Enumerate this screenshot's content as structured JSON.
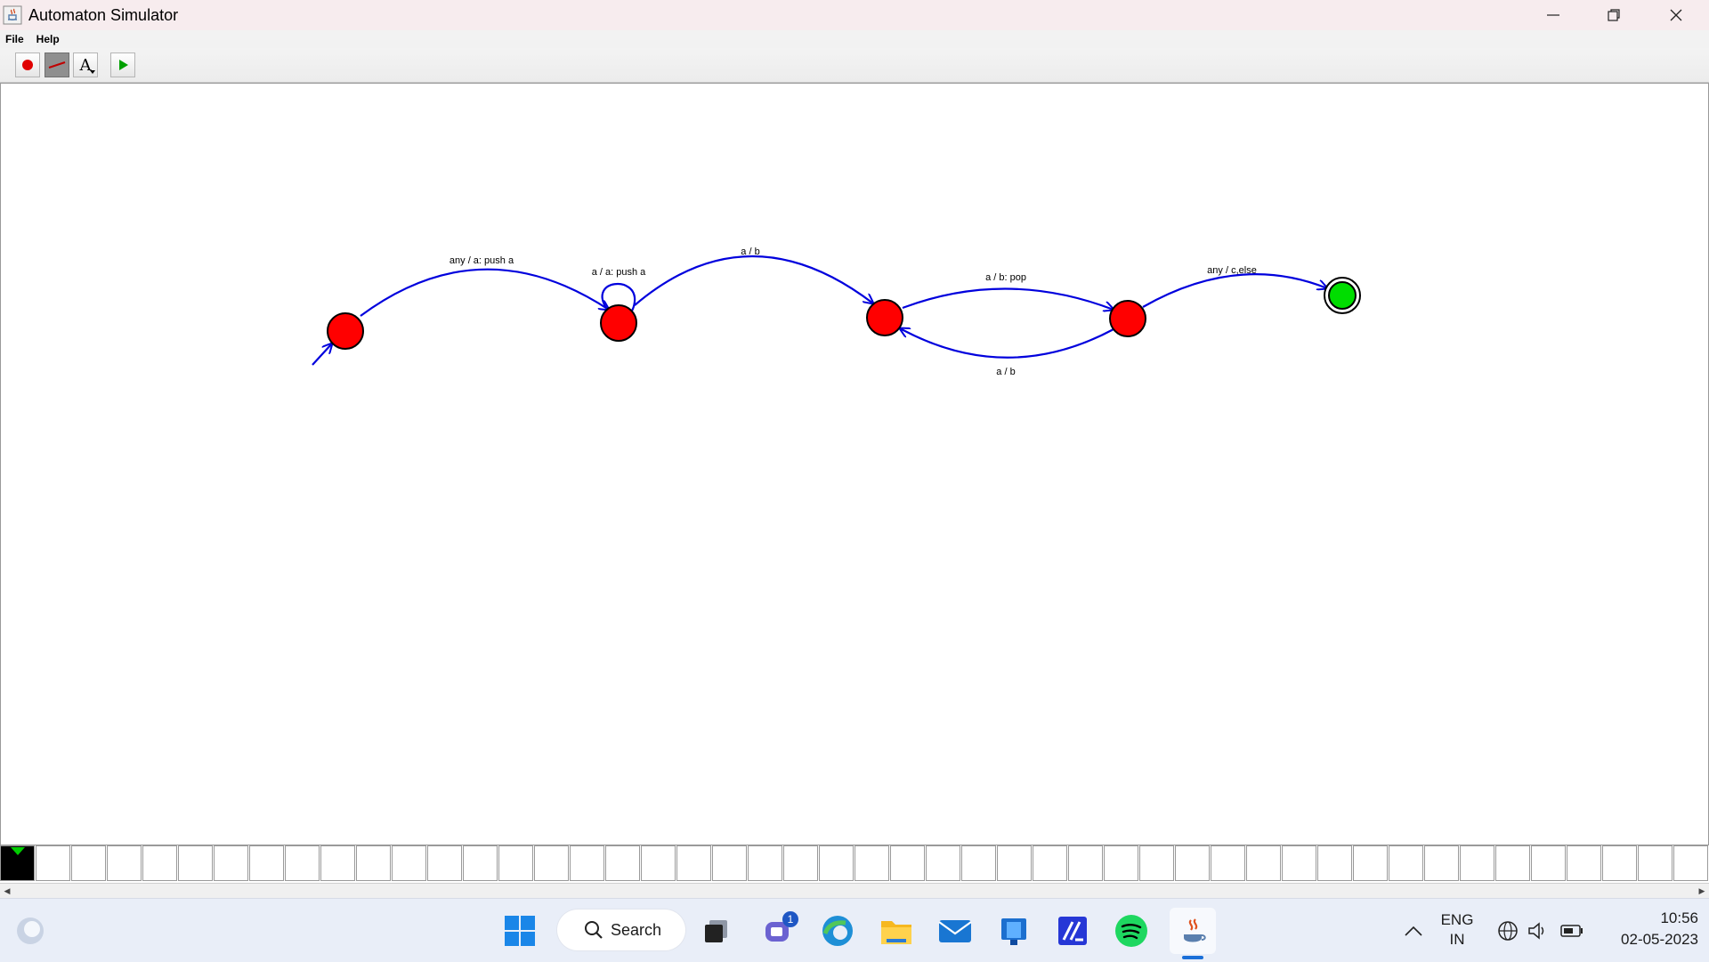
{
  "window": {
    "title": "Automaton Simulator"
  },
  "menu": {
    "items": [
      "File",
      "Help"
    ]
  },
  "toolbar": {
    "buttons": [
      {
        "name": "add-state-tool",
        "selected": false
      },
      {
        "name": "add-transition-tool",
        "selected": true
      },
      {
        "name": "add-text-tool",
        "selected": false,
        "label": "A"
      },
      {
        "name": "run-button",
        "selected": false
      }
    ]
  },
  "automaton": {
    "states": [
      {
        "id": "s0",
        "initial": true,
        "final": false,
        "color": "#ff0000"
      },
      {
        "id": "s1",
        "initial": false,
        "final": false,
        "color": "#ff0000"
      },
      {
        "id": "s2",
        "initial": false,
        "final": false,
        "color": "#ff0000"
      },
      {
        "id": "s3",
        "initial": false,
        "final": false,
        "color": "#ff0000"
      },
      {
        "id": "s4",
        "initial": false,
        "final": true,
        "color": "#00cc00"
      }
    ],
    "transitions": [
      {
        "from": "s0",
        "to": "s1",
        "label": "any / a: push a"
      },
      {
        "from": "s1",
        "to": "s1",
        "label": "a / a: push a"
      },
      {
        "from": "s1",
        "to": "s2",
        "label": "a / b"
      },
      {
        "from": "s2",
        "to": "s3",
        "label": "a / b: pop"
      },
      {
        "from": "s3",
        "to": "s2",
        "label": "a / b"
      },
      {
        "from": "s3",
        "to": "s4",
        "label": "any / c,else"
      }
    ],
    "edge_color": "#0000dd"
  },
  "tape": {
    "cell_count": 48,
    "head_index": 0
  },
  "taskbar": {
    "search_label": "Search",
    "teams_badge": "1",
    "lang_primary": "ENG",
    "lang_secondary": "IN",
    "time": "10:56",
    "date": "02-05-2023"
  }
}
